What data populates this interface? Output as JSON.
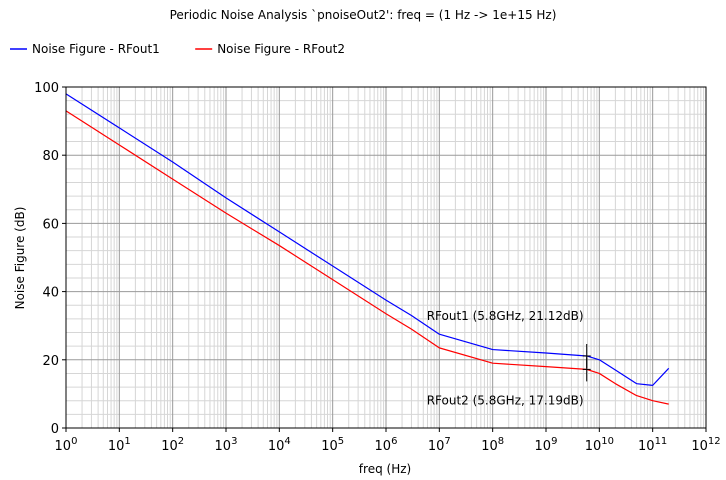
{
  "chart_data": {
    "type": "line",
    "title": "Periodic Noise Analysis `pnoiseOut2': freq = (1 Hz -> 1e+15 Hz)",
    "xlabel": "freq (Hz)",
    "ylabel": "Noise Figure (dB)",
    "xscale": "log",
    "xlim": [
      1,
      1000000000000.0
    ],
    "ylim": [
      0,
      100
    ],
    "grid": true,
    "legend_position": "top-left",
    "xtick_labels": [
      {
        "base": "10",
        "exp": "0"
      },
      {
        "base": "10",
        "exp": "1"
      },
      {
        "base": "10",
        "exp": "2"
      },
      {
        "base": "10",
        "exp": "3"
      },
      {
        "base": "10",
        "exp": "4"
      },
      {
        "base": "10",
        "exp": "5"
      },
      {
        "base": "10",
        "exp": "6"
      },
      {
        "base": "10",
        "exp": "7"
      },
      {
        "base": "10",
        "exp": "8"
      },
      {
        "base": "10",
        "exp": "9"
      },
      {
        "base": "10",
        "exp": "10"
      },
      {
        "base": "10",
        "exp": "11"
      },
      {
        "base": "10",
        "exp": "12"
      }
    ],
    "ytick_labels": [
      "0",
      "20",
      "40",
      "60",
      "80",
      "100"
    ],
    "series": [
      {
        "name": "Noise Figure - RFout1",
        "color": "#0000ff",
        "x": [
          1,
          10,
          100,
          1000,
          10000,
          100000,
          1000000,
          3000000,
          10000000,
          100000000,
          1000000000,
          5800000000,
          10000000000,
          20000000000,
          50000000000,
          100000000000,
          200000000000
        ],
        "y": [
          98,
          88,
          78,
          67.5,
          57.5,
          47.5,
          37.5,
          33,
          27.5,
          23,
          22,
          21.12,
          20,
          17,
          13,
          12.5,
          17.5
        ]
      },
      {
        "name": "Noise Figure - RFout2",
        "color": "#ff0000",
        "x": [
          1,
          10,
          100,
          1000,
          10000,
          100000,
          1000000,
          3000000,
          10000000,
          100000000,
          1000000000,
          5800000000,
          10000000000,
          20000000000,
          50000000000,
          100000000000,
          200000000000
        ],
        "y": [
          93,
          83,
          73,
          63,
          53.5,
          43.5,
          33.5,
          29,
          23.5,
          19,
          18,
          17.19,
          16,
          13,
          9.5,
          8,
          7
        ]
      }
    ],
    "annotations": [
      {
        "text": "RFout1 (5.8GHz, 21.12dB)",
        "x": 5800000000,
        "y": 21.12
      },
      {
        "text": "RFout2 (5.8GHz, 17.19dB)",
        "x": 5800000000,
        "y": 17.19
      }
    ]
  }
}
